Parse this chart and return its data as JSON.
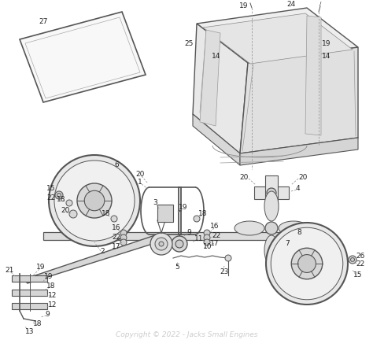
{
  "background_color": "#ffffff",
  "copyright_text": "Copyright © 2022 - Jacks Small Engines",
  "copyright_color": "#cccccc",
  "copyright_fontsize": 6.5,
  "line_color": "#555555",
  "line_width": 0.9,
  "dashed_color": "#999999",
  "label_color": "#222222",
  "label_fontsize": 6.5,
  "figsize": [
    4.74,
    4.41
  ],
  "dpi": 100
}
